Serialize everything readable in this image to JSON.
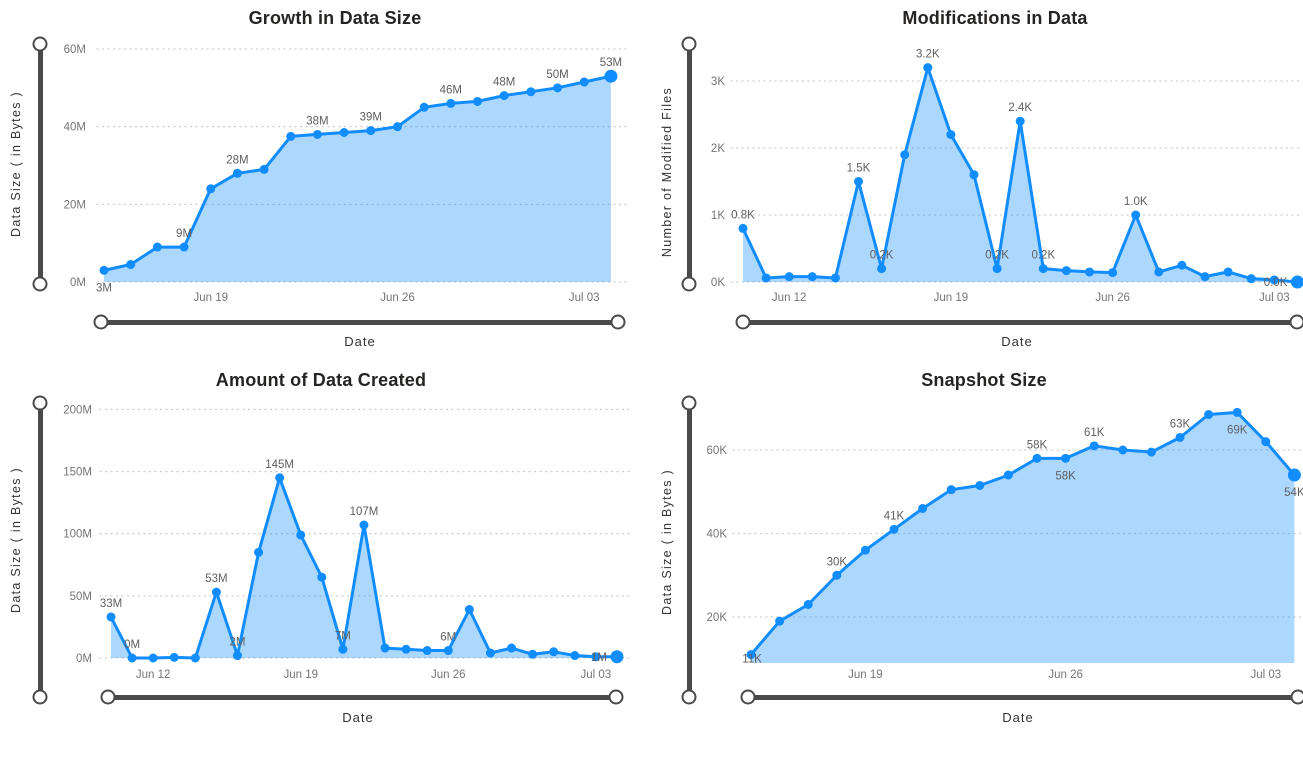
{
  "style": {
    "line_color": "#118DFF",
    "area_fill": "rgba(17,141,255,0.35)",
    "slider_color": "#4a4a4a",
    "grid_color": "#cdcdcd",
    "title_color": "#252423",
    "tick_color": "#757575",
    "data_label_color": "#5f5f5f",
    "background": "#ffffff"
  },
  "chart_data": [
    {
      "type": "area",
      "title": "Growth in Data Size",
      "xlabel": "Date",
      "ylabel": "Data Size ( in Bytes )",
      "x": [
        "Jun 15",
        "Jun 16",
        "Jun 17",
        "Jun 18",
        "Jun 19",
        "Jun 20",
        "Jun 21",
        "Jun 22",
        "Jun 23",
        "Jun 24",
        "Jun 25",
        "Jun 26",
        "Jun 27",
        "Jun 28",
        "Jun 29",
        "Jun 30",
        "Jul 01",
        "Jul 02",
        "Jul 03",
        "Jul 04"
      ],
      "values": [
        3,
        4.5,
        9,
        9,
        24,
        28,
        29,
        37.5,
        38,
        38.5,
        39,
        40,
        45,
        46,
        46.5,
        48,
        49,
        50,
        51.5,
        53
      ],
      "unit": "M",
      "ylim": [
        0,
        60
      ],
      "grid": "horizontal-dotted",
      "legend": false,
      "last_point_emphasis": true,
      "y_ticks": [
        {
          "v": 0,
          "label": "0M"
        },
        {
          "v": 20,
          "label": "20M"
        },
        {
          "v": 40,
          "label": "40M"
        },
        {
          "v": 60,
          "label": "60M"
        }
      ],
      "x_ticks": [
        {
          "i": 4,
          "label": "Jun 19"
        },
        {
          "i": 11,
          "label": "Jun 26"
        },
        {
          "i": 18,
          "label": "Jul 03"
        }
      ],
      "point_labels": [
        {
          "i": 0,
          "text": "3M",
          "pos": "below"
        },
        {
          "i": 3,
          "text": "9M",
          "pos": "above"
        },
        {
          "i": 5,
          "text": "28M",
          "pos": "above"
        },
        {
          "i": 8,
          "text": "38M",
          "pos": "above"
        },
        {
          "i": 10,
          "text": "39M",
          "pos": "above"
        },
        {
          "i": 13,
          "text": "46M",
          "pos": "above"
        },
        {
          "i": 15,
          "text": "48M",
          "pos": "above"
        },
        {
          "i": 17,
          "text": "50M",
          "pos": "above"
        },
        {
          "i": 19,
          "text": "53M",
          "pos": "above"
        }
      ]
    },
    {
      "type": "area",
      "title": "Modifications in Data",
      "xlabel": "Date",
      "ylabel": "Number of Modified Files",
      "x": [
        "Jun 10",
        "Jun 11",
        "Jun 12",
        "Jun 13",
        "Jun 14",
        "Jun 15",
        "Jun 16",
        "Jun 17",
        "Jun 18",
        "Jun 19",
        "Jun 20",
        "Jun 21",
        "Jun 22",
        "Jun 23",
        "Jun 24",
        "Jun 25",
        "Jun 26",
        "Jun 27",
        "Jun 28",
        "Jun 29",
        "Jun 30",
        "Jul 01",
        "Jul 02",
        "Jul 03",
        "Jul 04"
      ],
      "values": [
        0.8,
        0.06,
        0.08,
        0.08,
        0.06,
        1.5,
        0.2,
        1.9,
        3.2,
        2.2,
        1.6,
        0.2,
        2.4,
        0.2,
        0.17,
        0.15,
        0.14,
        1.0,
        0.15,
        0.25,
        0.08,
        0.15,
        0.05,
        0.03,
        0
      ],
      "unit": "K",
      "ylim": [
        0,
        3.2
      ],
      "grid": "horizontal-dotted",
      "legend": false,
      "last_point_emphasis": true,
      "y_ticks": [
        {
          "v": 0,
          "label": "0K"
        },
        {
          "v": 1,
          "label": "1K"
        },
        {
          "v": 2,
          "label": "2K"
        },
        {
          "v": 3,
          "label": "3K"
        }
      ],
      "x_ticks": [
        {
          "i": 2,
          "label": "Jun 12"
        },
        {
          "i": 9,
          "label": "Jun 19"
        },
        {
          "i": 16,
          "label": "Jun 26"
        },
        {
          "i": 23,
          "label": "Jul 03"
        }
      ],
      "point_labels": [
        {
          "i": 0,
          "text": "0.8K",
          "pos": "above"
        },
        {
          "i": 5,
          "text": "1.5K",
          "pos": "above"
        },
        {
          "i": 6,
          "text": "0.2K",
          "pos": "above"
        },
        {
          "i": 8,
          "text": "3.2K",
          "pos": "above"
        },
        {
          "i": 11,
          "text": "0.2K",
          "pos": "above"
        },
        {
          "i": 12,
          "text": "2.4K",
          "pos": "above"
        },
        {
          "i": 13,
          "text": "0.2K",
          "pos": "above"
        },
        {
          "i": 17,
          "text": "1.0K",
          "pos": "above"
        },
        {
          "i": 24,
          "text": "0.0K",
          "pos": "left"
        }
      ]
    },
    {
      "type": "area",
      "title": "Amount of Data Created",
      "xlabel": "Date",
      "ylabel": "Data Size ( in Bytes )",
      "x": [
        "Jun 10",
        "Jun 11",
        "Jun 12",
        "Jun 13",
        "Jun 14",
        "Jun 15",
        "Jun 16",
        "Jun 17",
        "Jun 18",
        "Jun 19",
        "Jun 20",
        "Jun 21",
        "Jun 22",
        "Jun 23",
        "Jun 24",
        "Jun 25",
        "Jun 26",
        "Jun 27",
        "Jun 28",
        "Jun 29",
        "Jun 30",
        "Jul 01",
        "Jul 02",
        "Jul 03",
        "Jul 04"
      ],
      "values": [
        33,
        0,
        0,
        0.5,
        0,
        53,
        2,
        85,
        145,
        99,
        65,
        7,
        107,
        8,
        7,
        6,
        6,
        39,
        4,
        8,
        3,
        5,
        2,
        1,
        1
      ],
      "unit": "M",
      "ylim": [
        0,
        200
      ],
      "grid": "horizontal-dotted",
      "legend": false,
      "last_point_emphasis": true,
      "y_ticks": [
        {
          "v": 0,
          "label": "0M"
        },
        {
          "v": 50,
          "label": "50M"
        },
        {
          "v": 100,
          "label": "100M"
        },
        {
          "v": 150,
          "label": "150M"
        },
        {
          "v": 200,
          "label": "200M"
        }
      ],
      "x_ticks": [
        {
          "i": 2,
          "label": "Jun 12"
        },
        {
          "i": 9,
          "label": "Jun 19"
        },
        {
          "i": 16,
          "label": "Jun 26"
        },
        {
          "i": 23,
          "label": "Jul 03"
        }
      ],
      "point_labels": [
        {
          "i": 0,
          "text": "33M",
          "pos": "above"
        },
        {
          "i": 1,
          "text": "0M",
          "pos": "above"
        },
        {
          "i": 5,
          "text": "53M",
          "pos": "above"
        },
        {
          "i": 6,
          "text": "2M",
          "pos": "above"
        },
        {
          "i": 8,
          "text": "145M",
          "pos": "above"
        },
        {
          "i": 11,
          "text": "7M",
          "pos": "above"
        },
        {
          "i": 12,
          "text": "107M",
          "pos": "above"
        },
        {
          "i": 16,
          "text": "6M",
          "pos": "above"
        },
        {
          "i": 24,
          "text": "1M",
          "pos": "left"
        }
      ]
    },
    {
      "type": "area",
      "title": "Snapshot Size",
      "xlabel": "Date",
      "ylabel": "Data Size ( in Bytes )",
      "x": [
        "Jun 15",
        "Jun 16",
        "Jun 17",
        "Jun 18",
        "Jun 19",
        "Jun 20",
        "Jun 21",
        "Jun 22",
        "Jun 23",
        "Jun 24",
        "Jun 25",
        "Jun 26",
        "Jun 27",
        "Jun 28",
        "Jun 29",
        "Jun 30",
        "Jul 01",
        "Jul 02",
        "Jul 03",
        "Jul 04"
      ],
      "values": [
        11,
        19,
        23,
        30,
        36,
        41,
        46,
        50.5,
        51.5,
        54,
        58,
        58,
        61,
        60,
        59.5,
        63,
        68.5,
        69,
        62,
        54
      ],
      "unit": "K",
      "ylim": [
        9,
        72
      ],
      "grid": "horizontal-dotted",
      "legend": false,
      "last_point_emphasis": true,
      "y_ticks": [
        {
          "v": 20,
          "label": "20K"
        },
        {
          "v": 40,
          "label": "40K"
        },
        {
          "v": 60,
          "label": "60K"
        }
      ],
      "x_ticks": [
        {
          "i": 4,
          "label": "Jun 19"
        },
        {
          "i": 11,
          "label": "Jun 26"
        },
        {
          "i": 18,
          "label": "Jul 03"
        }
      ],
      "point_labels": [
        {
          "i": 0,
          "text": "11K",
          "pos": "on"
        },
        {
          "i": 3,
          "text": "30K",
          "pos": "above"
        },
        {
          "i": 5,
          "text": "41K",
          "pos": "above"
        },
        {
          "i": 10,
          "text": "58K",
          "pos": "above"
        },
        {
          "i": 11,
          "text": "58K",
          "pos": "below"
        },
        {
          "i": 12,
          "text": "61K",
          "pos": "above"
        },
        {
          "i": 15,
          "text": "63K",
          "pos": "above"
        },
        {
          "i": 17,
          "text": "69K",
          "pos": "below"
        },
        {
          "i": 19,
          "text": "54K",
          "pos": "below"
        }
      ]
    }
  ]
}
